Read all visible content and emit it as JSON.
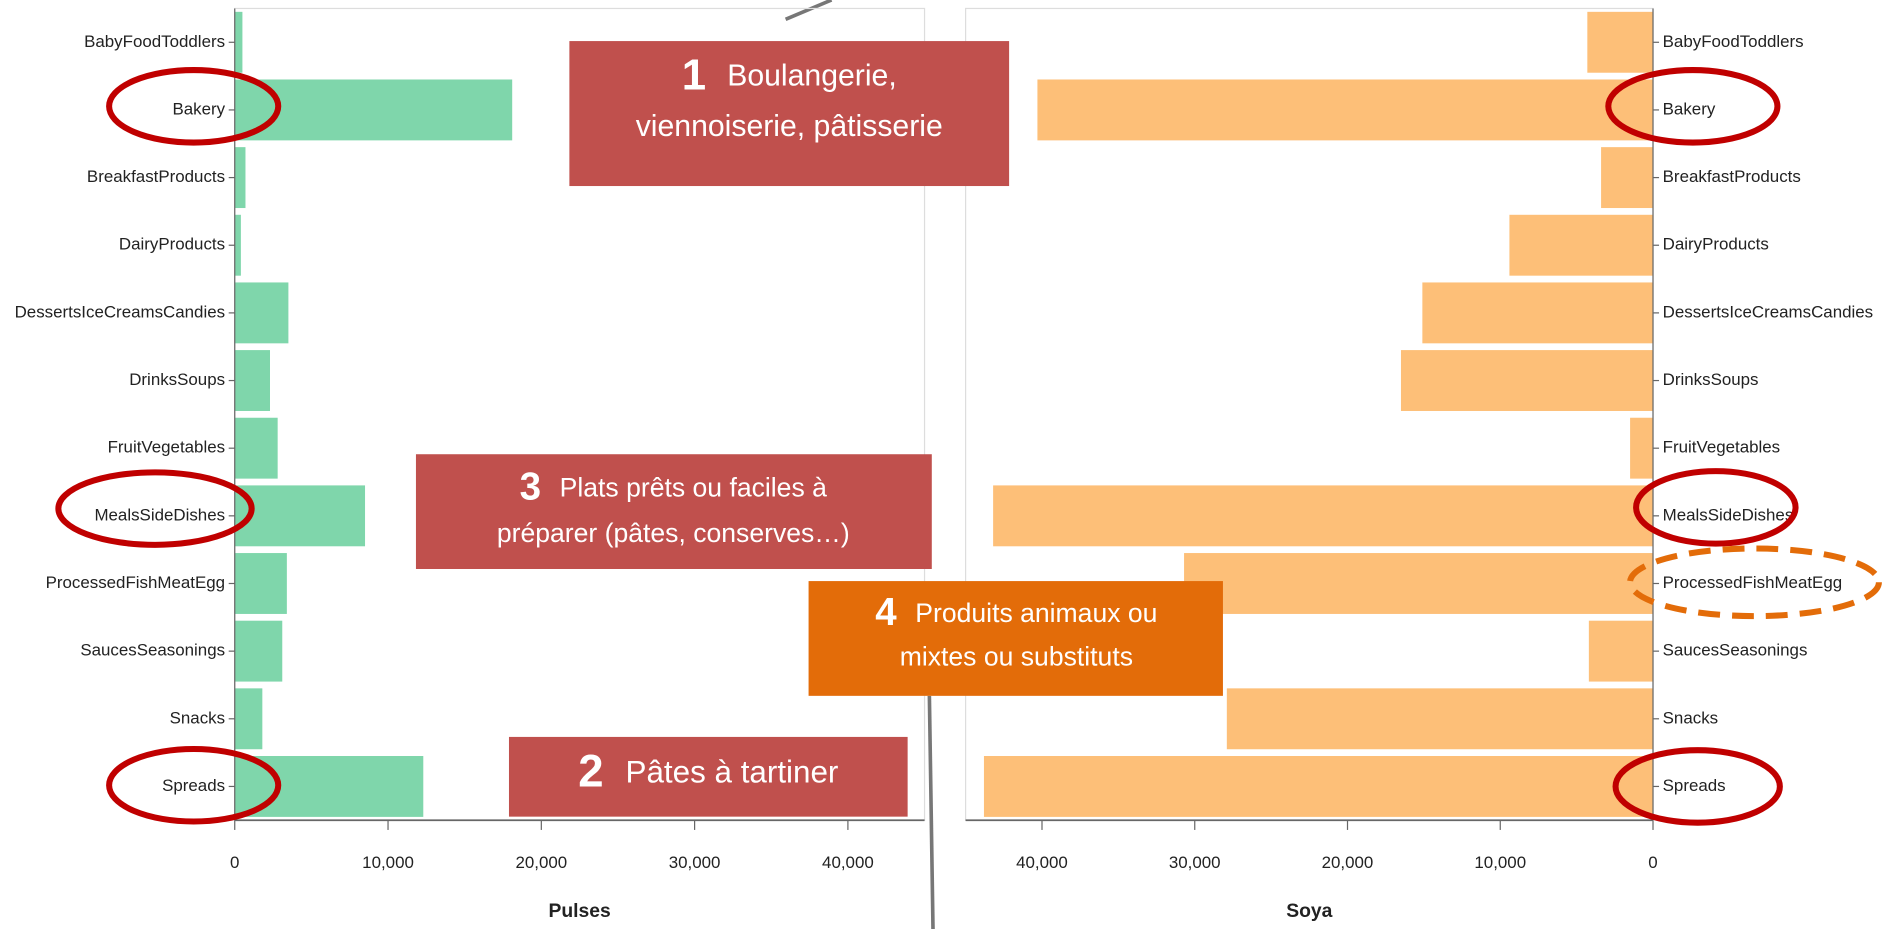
{
  "chart_data": [
    {
      "type": "bar",
      "orientation": "horizontal",
      "x_label": "Pulses",
      "categories": [
        "BabyFoodToddlers",
        "Bakery",
        "BreakfastProducts",
        "DairyProducts",
        "DessertsIceCreamsCandies",
        "DrinksSoups",
        "FruitVegetables",
        "MealsSideDishes",
        "ProcessedFishMeatEgg",
        "SaucesSeasonings",
        "Snacks",
        "Spreads"
      ],
      "values": [
        500,
        18100,
        700,
        400,
        3500,
        2300,
        2800,
        8500,
        3400,
        3100,
        1800,
        12300
      ],
      "color": "#7fd6ab",
      "xlim": [
        0,
        45000
      ],
      "xticks": [
        0,
        {
          "value": 10000,
          "label": "10,000"
        },
        {
          "value": 20000,
          "label": "20,000"
        },
        {
          "value": 30000,
          "label": "30,000"
        },
        {
          "value": 40000,
          "label": "40,000"
        }
      ]
    },
    {
      "type": "bar",
      "orientation": "horizontal",
      "x_label": "Soya",
      "categories": [
        "BabyFoodToddlers",
        "Bakery",
        "BreakfastProducts",
        "DairyProducts",
        "DessertsIceCreamsCandies",
        "DrinksSoups",
        "FruitVegetables",
        "MealsSideDishes",
        "ProcessedFishMeatEgg",
        "SaucesSeasonings",
        "Snacks",
        "Spreads"
      ],
      "values": [
        4300,
        40300,
        3400,
        9400,
        15100,
        16500,
        1500,
        43200,
        30700,
        4200,
        27900,
        43800
      ],
      "color": "#fdbf78",
      "xlim": [
        45000,
        0
      ],
      "xticks": [
        {
          "value": 40000,
          "label": "40,000"
        },
        {
          "value": 30000,
          "label": "30,000"
        },
        {
          "value": 20000,
          "label": "20,000"
        },
        {
          "value": 10000,
          "label": "10,000"
        },
        0
      ]
    }
  ],
  "annotations": [
    {
      "number": "1",
      "lines": [
        "Boulangerie,",
        "viennoiserie, pâtisserie"
      ],
      "color": "#c0504d"
    },
    {
      "number": "2",
      "lines": [
        "Pâtes à tartiner"
      ],
      "color": "#c0504d"
    },
    {
      "number": "3",
      "lines": [
        "Plats prêts ou faciles à",
        "préparer (pâtes, conserves…)"
      ],
      "color": "#c0504d"
    },
    {
      "number": "4",
      "lines": [
        "Produits animaux ou",
        "mixtes ou substituts"
      ],
      "color": "#e36c09"
    }
  ]
}
